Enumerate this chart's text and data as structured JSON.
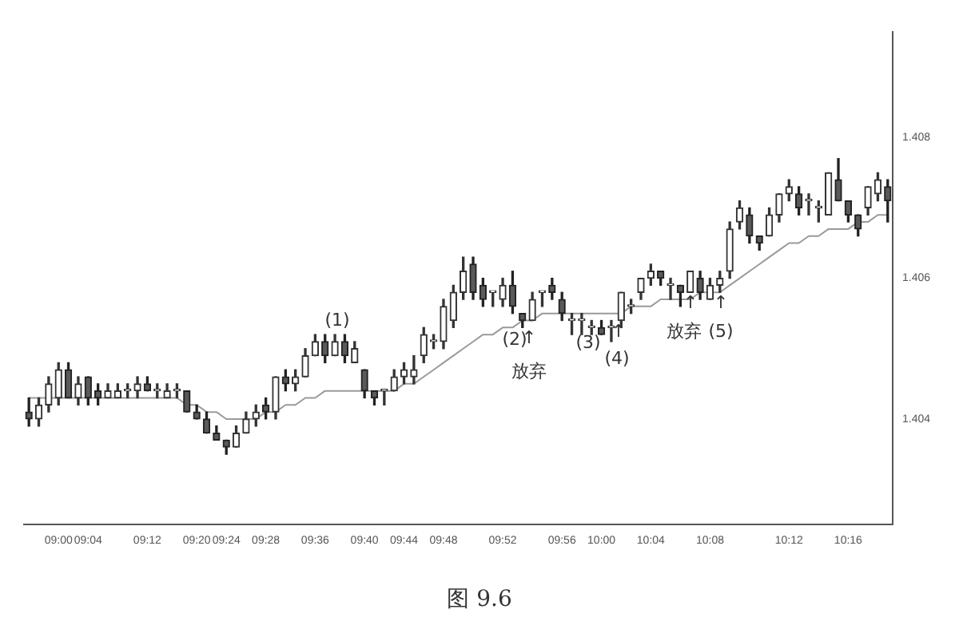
{
  "chart_data": {
    "type": "candlestick",
    "categories": [
      null,
      null,
      null,
      "09:00",
      null,
      null,
      "09:04",
      null,
      null,
      null,
      null,
      null,
      "09:12",
      null,
      null,
      null,
      null,
      "09:20",
      null,
      null,
      "09:24",
      null,
      null,
      null,
      "09:28",
      null,
      null,
      null,
      null,
      "09:36",
      null,
      null,
      null,
      null,
      "09:40",
      null,
      null,
      null,
      "09:44",
      null,
      null,
      null,
      "09:48",
      null,
      null,
      null,
      null,
      null,
      "09:52",
      null,
      null,
      null,
      null,
      null,
      "09:56",
      null,
      null,
      null,
      "10:00",
      null,
      null,
      null,
      null,
      "10:04",
      null,
      null,
      null,
      null,
      null,
      "10:08",
      null,
      null,
      null,
      null,
      null,
      null,
      null,
      "10:12",
      null,
      null,
      null,
      null,
      null,
      "10:16",
      null,
      null,
      null,
      null
    ],
    "ohlc": [
      [
        1.4041,
        1.4043,
        1.4039,
        1.404
      ],
      [
        1.404,
        1.4043,
        1.4039,
        1.4042
      ],
      [
        1.4042,
        1.4046,
        1.4041,
        1.4045
      ],
      [
        1.4043,
        1.4048,
        1.4042,
        1.4047
      ],
      [
        1.4047,
        1.4048,
        1.4043,
        1.4043
      ],
      [
        1.4043,
        1.4046,
        1.4042,
        1.4045
      ],
      [
        1.4046,
        1.4046,
        1.4042,
        1.4043
      ],
      [
        1.4044,
        1.4045,
        1.4042,
        1.4043
      ],
      [
        1.4043,
        1.4045,
        1.4043,
        1.4044
      ],
      [
        1.4043,
        1.4045,
        1.4043,
        1.4044
      ],
      [
        1.4044,
        1.4045,
        1.4043,
        1.4044
      ],
      [
        1.4044,
        1.4046,
        1.4043,
        1.4045
      ],
      [
        1.4045,
        1.4046,
        1.4044,
        1.4044
      ],
      [
        1.4044,
        1.4045,
        1.4043,
        1.4044
      ],
      [
        1.4043,
        1.4045,
        1.4043,
        1.4044
      ],
      [
        1.4044,
        1.4045,
        1.4043,
        1.4044
      ],
      [
        1.4044,
        1.4044,
        1.4041,
        1.4041
      ],
      [
        1.4041,
        1.4042,
        1.404,
        1.404
      ],
      [
        1.404,
        1.4041,
        1.4038,
        1.4038
      ],
      [
        1.4038,
        1.4039,
        1.4037,
        1.4037
      ],
      [
        1.4037,
        1.4037,
        1.4035,
        1.4036
      ],
      [
        1.4036,
        1.4039,
        1.4036,
        1.4038
      ],
      [
        1.4038,
        1.4041,
        1.4038,
        1.404
      ],
      [
        1.404,
        1.4042,
        1.4039,
        1.4041
      ],
      [
        1.4042,
        1.4043,
        1.404,
        1.4041
      ],
      [
        1.4041,
        1.4046,
        1.404,
        1.4046
      ],
      [
        1.4046,
        1.4047,
        1.4044,
        1.4045
      ],
      [
        1.4045,
        1.4047,
        1.4044,
        1.4046
      ],
      [
        1.4046,
        1.405,
        1.4046,
        1.4049
      ],
      [
        1.4049,
        1.4052,
        1.4049,
        1.4051
      ],
      [
        1.4051,
        1.4052,
        1.4048,
        1.4049
      ],
      [
        1.4049,
        1.4052,
        1.4049,
        1.4051
      ],
      [
        1.4051,
        1.4052,
        1.4048,
        1.4049
      ],
      [
        1.4048,
        1.4051,
        1.4048,
        1.405
      ],
      [
        1.4047,
        1.4047,
        1.4043,
        1.4044
      ],
      [
        1.4044,
        1.4044,
        1.4042,
        1.4043
      ],
      [
        1.4044,
        1.4044,
        1.4042,
        1.4044
      ],
      [
        1.4044,
        1.4047,
        1.4044,
        1.4046
      ],
      [
        1.4046,
        1.4048,
        1.4045,
        1.4047
      ],
      [
        1.4046,
        1.4049,
        1.4045,
        1.4047
      ],
      [
        1.4049,
        1.4053,
        1.4048,
        1.4052
      ],
      [
        1.4051,
        1.4052,
        1.405,
        1.4051
      ],
      [
        1.4051,
        1.4057,
        1.405,
        1.4056
      ],
      [
        1.4054,
        1.4059,
        1.4053,
        1.4058
      ],
      [
        1.4058,
        1.4063,
        1.4057,
        1.4061
      ],
      [
        1.4062,
        1.4063,
        1.4057,
        1.4058
      ],
      [
        1.4059,
        1.406,
        1.4056,
        1.4057
      ],
      [
        1.4058,
        1.4058,
        1.4056,
        1.4058
      ],
      [
        1.4057,
        1.406,
        1.4056,
        1.4059
      ],
      [
        1.4059,
        1.4061,
        1.4055,
        1.4056
      ],
      [
        1.4055,
        1.4055,
        1.4053,
        1.4054
      ],
      [
        1.4054,
        1.4058,
        1.4054,
        1.4057
      ],
      [
        1.4058,
        1.4058,
        1.4056,
        1.4058
      ],
      [
        1.4059,
        1.406,
        1.4057,
        1.4058
      ],
      [
        1.4057,
        1.4058,
        1.4054,
        1.4055
      ],
      [
        1.4054,
        1.4055,
        1.4052,
        1.4054
      ],
      [
        1.4054,
        1.4055,
        1.4052,
        1.4054
      ],
      [
        1.4053,
        1.4054,
        1.4052,
        1.4053
      ],
      [
        1.4053,
        1.4054,
        1.4052,
        1.4052
      ],
      [
        1.4053,
        1.4054,
        1.4051,
        1.4053
      ],
      [
        1.4054,
        1.4058,
        1.4053,
        1.4058
      ],
      [
        1.4056,
        1.4057,
        1.4055,
        1.4056
      ],
      [
        1.4058,
        1.406,
        1.4057,
        1.406
      ],
      [
        1.406,
        1.4062,
        1.4059,
        1.4061
      ],
      [
        1.4061,
        1.4061,
        1.4059,
        1.406
      ],
      [
        1.4059,
        1.406,
        1.4057,
        1.4059
      ],
      [
        1.4059,
        1.4059,
        1.4056,
        1.4058
      ],
      [
        1.4058,
        1.4061,
        1.4058,
        1.4061
      ],
      [
        1.406,
        1.4061,
        1.4057,
        1.4058
      ],
      [
        1.4057,
        1.406,
        1.4057,
        1.4059
      ],
      [
        1.4059,
        1.4061,
        1.4058,
        1.406
      ],
      [
        1.4061,
        1.4068,
        1.406,
        1.4067
      ],
      [
        1.4068,
        1.4071,
        1.4067,
        1.407
      ],
      [
        1.4069,
        1.407,
        1.4065,
        1.4066
      ],
      [
        1.4066,
        1.4066,
        1.4064,
        1.4065
      ],
      [
        1.4066,
        1.407,
        1.4066,
        1.4069
      ],
      [
        1.4069,
        1.4072,
        1.4068,
        1.4072
      ],
      [
        1.4072,
        1.4074,
        1.4071,
        1.4073
      ],
      [
        1.4072,
        1.4073,
        1.4069,
        1.407
      ],
      [
        1.4071,
        1.4072,
        1.4069,
        1.4071
      ],
      [
        1.407,
        1.4071,
        1.4068,
        1.407
      ],
      [
        1.4069,
        1.4075,
        1.4069,
        1.4075
      ],
      [
        1.4074,
        1.4077,
        1.4071,
        1.4071
      ],
      [
        1.4071,
        1.4071,
        1.4068,
        1.4069
      ],
      [
        1.4069,
        1.4069,
        1.4066,
        1.4067
      ],
      [
        1.407,
        1.4073,
        1.4069,
        1.4073
      ],
      [
        1.4072,
        1.4075,
        1.4071,
        1.4074
      ],
      [
        1.4073,
        1.4074,
        1.4068,
        1.4071
      ]
    ],
    "series": [
      {
        "type": "line",
        "color": "#9a9a9a",
        "values": [
          1.4043,
          1.4043,
          1.4043,
          1.4043,
          1.4043,
          1.4043,
          1.4043,
          1.4043,
          1.4043,
          1.4043,
          1.4043,
          1.4043,
          1.4043,
          1.4043,
          1.4043,
          1.4043,
          1.4042,
          1.4042,
          1.4041,
          1.4041,
          1.404,
          1.404,
          1.404,
          1.404,
          1.4041,
          1.4041,
          1.4042,
          1.4042,
          1.4043,
          1.4043,
          1.4044,
          1.4044,
          1.4044,
          1.4044,
          1.4044,
          1.4044,
          1.4044,
          1.4044,
          1.4045,
          1.4045,
          1.4046,
          1.4047,
          1.4048,
          1.4049,
          1.405,
          1.4051,
          1.4052,
          1.4052,
          1.4053,
          1.4053,
          1.4054,
          1.4054,
          1.4055,
          1.4055,
          1.4055,
          1.4055,
          1.4055,
          1.4055,
          1.4055,
          1.4055,
          1.4055,
          1.4056,
          1.4056,
          1.4056,
          1.4057,
          1.4057,
          1.4057,
          1.4057,
          1.4058,
          1.4058,
          1.4058,
          1.4059,
          1.406,
          1.4061,
          1.4062,
          1.4063,
          1.4064,
          1.4065,
          1.4065,
          1.4066,
          1.4066,
          1.4067,
          1.4067,
          1.4067,
          1.4068,
          1.4068,
          1.4069,
          1.4069
        ]
      }
    ],
    "ylim": [
      1.4025,
      1.4095
    ],
    "yticks": [
      1.404,
      1.406,
      1.408
    ],
    "grid": false,
    "legend": false,
    "marker": "none",
    "line_style": "solid",
    "annotations": [
      "(1)",
      "(2)",
      "↑",
      "放弃",
      "(3)",
      "↑",
      "(4)",
      "↑",
      "放弃",
      "↑",
      "(5)",
      "图 9.6"
    ]
  }
}
